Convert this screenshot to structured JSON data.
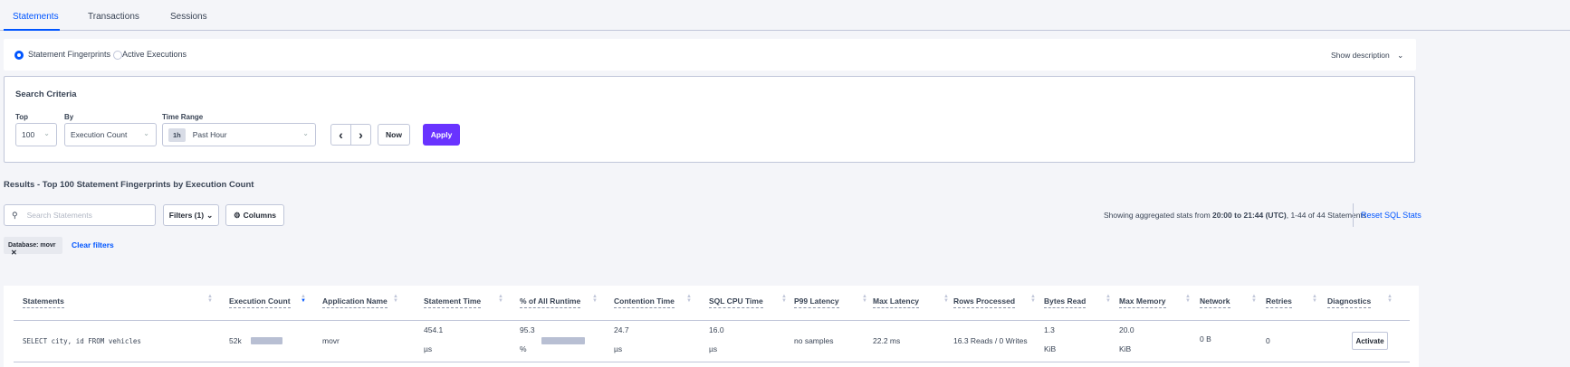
{
  "tabs": [
    {
      "label": "Statements",
      "active": true
    },
    {
      "label": "Transactions"
    },
    {
      "label": "Sessions"
    }
  ],
  "view_toggle": {
    "options": [
      "Statement Fingerprints",
      "Active Executions"
    ],
    "selected": "Statement Fingerprints",
    "show_description": "Show description"
  },
  "search_criteria": {
    "title": "Search Criteria",
    "top_label": "Top",
    "top_value": "100",
    "by_label": "By",
    "by_value": "Execution Count",
    "time_range_label": "Time Range",
    "time_badge": "1h",
    "time_value": "Past Hour",
    "now_label": "Now",
    "apply_label": "Apply"
  },
  "results": {
    "heading": "Results - Top 100 Statement Fingerprints by Execution Count",
    "search_placeholder": "Search Statements",
    "filters_label": "Filters (1)",
    "columns_label": "Columns",
    "stats_prefix": "Showing aggregated stats from ",
    "stats_range": "20:00 to 21:44 (UTC)",
    "stats_suffix": ", 1-44 of 44 Statements",
    "reset_label": "Reset SQL Stats",
    "chip_label": "Database: movr",
    "clear_filters": "Clear filters"
  },
  "table": {
    "columns": [
      "Statements",
      "Execution Count",
      "Application Name",
      "Statement Time",
      "% of All Runtime",
      "Contention Time",
      "SQL CPU Time",
      "P99 Latency",
      "Max Latency",
      "Rows Processed",
      "Bytes Read",
      "Max Memory",
      "Network",
      "Retries",
      "Diagnostics"
    ],
    "sorted_column": "Execution Count",
    "rows": [
      {
        "statement": "SELECT city, id FROM vehicles",
        "execution_count": "52k",
        "execution_count_fraction": 1.0,
        "application": "movr",
        "statement_time": "454.1",
        "statement_time_unit": "µs",
        "runtime_pct": "95.3",
        "runtime_pct_unit": "%",
        "runtime_fraction": 0.953,
        "contention_time": "24.7",
        "contention_unit": "µs",
        "sql_cpu": "16.0",
        "sql_cpu_unit": "µs",
        "p99": "no samples",
        "max_latency": "22.2 ms",
        "rows_processed": "16.3 Reads / 0 Writes",
        "bytes_read": "1.3",
        "bytes_read_unit": "KiB",
        "max_memory": "20.0",
        "max_memory_unit": "KiB",
        "network": "0 B",
        "retries": "0",
        "diagnostics": "Activate"
      }
    ]
  },
  "colors": {
    "accent": "#0055ff",
    "apply": "#6933ff",
    "bar": "#b8bfd3"
  }
}
